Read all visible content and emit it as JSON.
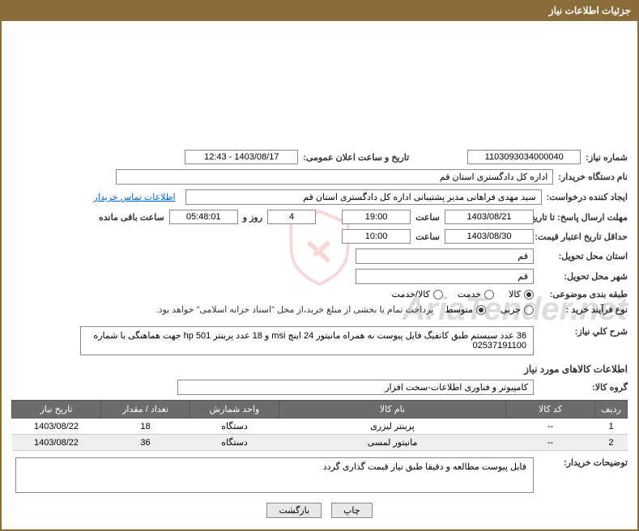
{
  "header": {
    "title": "جزئیات اطلاعات نیاز"
  },
  "form": {
    "need_no_label": "شماره نیاز:",
    "need_no": "1103093034000040",
    "announce_label": "تاریخ و ساعت اعلان عمومی:",
    "announce_value": "1403/08/17 - 12:43",
    "buyer_label": "نام دستگاه خریدار:",
    "buyer_value": "اداره کل دادگستری استان قم",
    "requester_label": "ایجاد کننده درخواست:",
    "requester_value": "سید مهدی فراهانی مدیر پشتیبانی اداره کل دادگستری استان قم",
    "contact_link": "اطلاعات تماس خریدار",
    "deadline_label": "مهلت ارسال پاسخ: تا تاریخ:",
    "deadline_date": "1403/08/21",
    "hour_label": "ساعت",
    "deadline_hour": "19:00",
    "days_word": "روز و",
    "remain_days": "4",
    "remain_time": "05:48:01",
    "remain_word": "ساعت باقی مانده",
    "validity_label": "حداقل تاریخ اعتبار قیمت: تا تاریخ:",
    "validity_date": "1403/08/30",
    "validity_hour": "10:00",
    "province_label": "استان محل تحویل:",
    "province_value": "قم",
    "city_label": "شهر محل تحویل:",
    "city_value": "قم",
    "category_label": "طبقه بندی موضوعی:",
    "cat_kala": "کالا",
    "cat_khedmat": "خدمت",
    "cat_both": "کالا/خدمت",
    "purchase_label": "نوع فرآیند خرید :",
    "p_jozi": "جزیی",
    "p_mid": "متوسط",
    "purchase_note": "پرداخت تمام یا بخشی از مبلغ خرید،از محل \"اسناد خزانه اسلامی\" خواهد بود.",
    "desc_label": "شرح كلي نیاز:",
    "desc_value": "36 عدد سیستم طبق کانفیگ فایل پیوست به همراه مانیتور 24 اینچ msi و 18 عدد پرینتر hp 501 جهت هماهنگی با شماره 02537191100",
    "goods_section": "اطلاعات کالاهای مورد نیاز",
    "group_label": "گروه کالا:",
    "group_value": "کامپیوتر و فناوری اطلاعات-سخت افزار",
    "buyer_note_label": "توضیحات خریدار:",
    "buyer_note_value": "فایل پیوست مطالعه و دقیقا طبق نیاز قیمت گذاری گردد"
  },
  "table": {
    "cols": [
      "ردیف",
      "کد کالا",
      "نام کالا",
      "واحد شمارش",
      "تعداد / مقدار",
      "تاریخ نیاز"
    ],
    "rows": [
      [
        "1",
        "--",
        "پرینتر لیزری",
        "دستگاه",
        "18",
        "1403/08/22"
      ],
      [
        "2",
        "--",
        "مانیتور لمسی",
        "دستگاه",
        "36",
        "1403/08/22"
      ]
    ]
  },
  "buttons": {
    "print": "چاپ",
    "back": "بازگشت"
  }
}
